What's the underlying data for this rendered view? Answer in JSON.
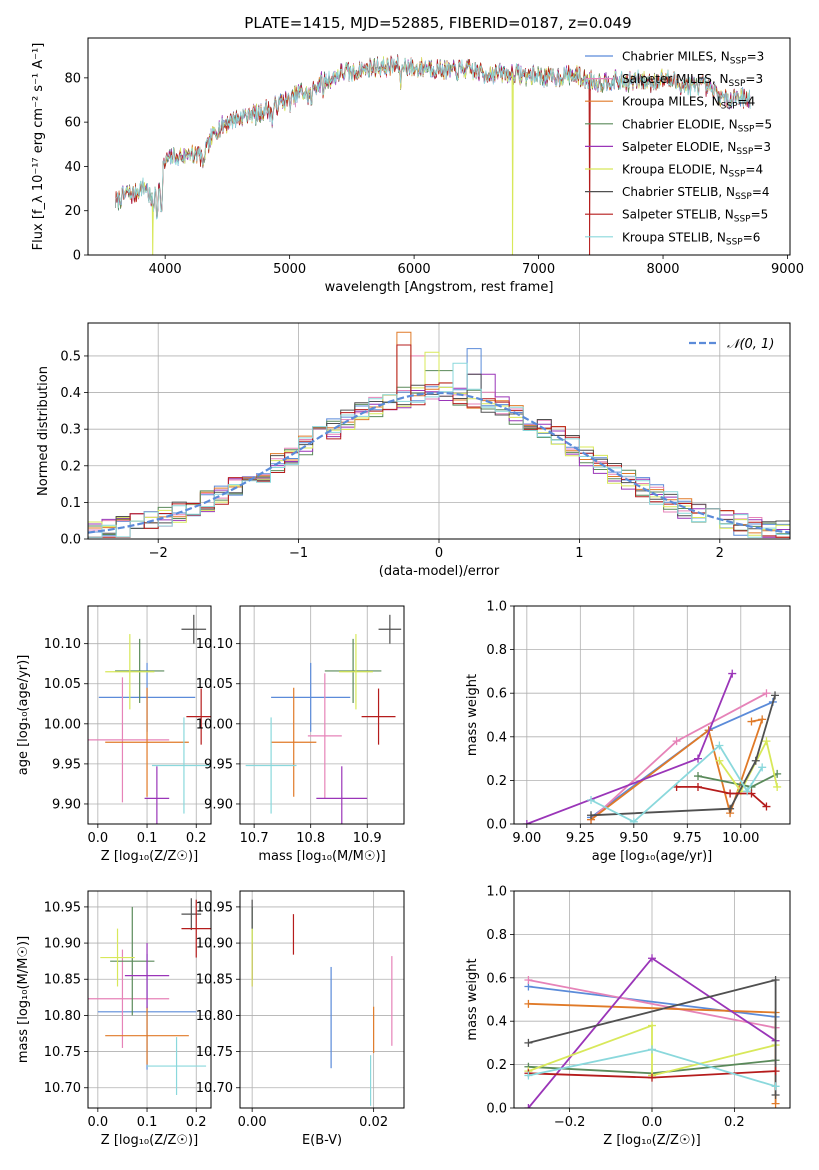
{
  "figure": {
    "title": "PLATE=1415, MJD=52885, FIBERID=0187, z=0.049"
  },
  "models": [
    {
      "name": "Chabrier MILES",
      "nssp": "3",
      "color": "#5b8bd9"
    },
    {
      "name": "Salpeter MILES",
      "nssp": "3",
      "color": "#e683b8"
    },
    {
      "name": "Kroupa MILES",
      "nssp": "4",
      "color": "#e07a28"
    },
    {
      "name": "Chabrier ELODIE",
      "nssp": "5",
      "color": "#5a8a5a"
    },
    {
      "name": "Salpeter ELODIE",
      "nssp": "3",
      "color": "#9a35b8"
    },
    {
      "name": "Kroupa ELODIE",
      "nssp": "4",
      "color": "#d8e85a"
    },
    {
      "name": "Chabrier STELIB",
      "nssp": "4",
      "color": "#505050"
    },
    {
      "name": "Salpeter STELIB",
      "nssp": "5",
      "color": "#b51c1c"
    },
    {
      "name": "Kroupa STELIB",
      "nssp": "6",
      "color": "#8ad8dc"
    }
  ],
  "chart_data": [
    {
      "id": "spectrum",
      "type": "line",
      "xlabel": "wavelength [Angstrom, rest frame]",
      "ylabel": "Flux [f_λ 10⁻¹⁷ erg cm⁻² s⁻¹ A⁻¹]",
      "xlim": [
        3380,
        9020
      ],
      "ylim": [
        0,
        98
      ],
      "xticks": [
        4000,
        5000,
        6000,
        7000,
        8000,
        9000
      ],
      "yticks": [
        0,
        20,
        40,
        60,
        80
      ],
      "legend_position": "right",
      "continuum": {
        "x": [
          3600,
          3650,
          3700,
          3750,
          3800,
          3850,
          3900,
          3950,
          4000,
          4050,
          4100,
          4150,
          4200,
          4250,
          4300,
          4350,
          4400,
          4450,
          4500,
          4550,
          4600,
          4650,
          4700,
          4750,
          4800,
          4850,
          4900,
          4950,
          5000,
          5050,
          5100,
          5150,
          5200,
          5250,
          5300,
          5350,
          5400,
          5450,
          5500,
          5600,
          5700,
          5800,
          5900,
          6000,
          6100,
          6200,
          6300,
          6400,
          6500,
          6600,
          6700,
          6800,
          6900,
          7000,
          7100,
          7200,
          7300,
          7400,
          7500,
          7600,
          7700,
          7800,
          7900,
          8000,
          8100,
          8200,
          8300,
          8400,
          8500,
          8600,
          8700
        ],
        "y": [
          24,
          26,
          28,
          27,
          30,
          31,
          22,
          34,
          42,
          44,
          46,
          44,
          47,
          46,
          44,
          50,
          56,
          58,
          60,
          61,
          62,
          63,
          64,
          63,
          66,
          65,
          68,
          70,
          69,
          72,
          74,
          72,
          76,
          78,
          79,
          80,
          82,
          83,
          82,
          84,
          85,
          85,
          86,
          84,
          85,
          84,
          83,
          84,
          83,
          82,
          82,
          82,
          81,
          81,
          80,
          81,
          81,
          79,
          78,
          79,
          78,
          79,
          78,
          80,
          78,
          76,
          77,
          74,
          70,
          72,
          70
        ]
      },
      "absorption_lines": [
        {
          "x": 3934,
          "y": 14
        },
        {
          "x": 3969,
          "y": 18
        },
        {
          "x": 4102,
          "y": 40
        },
        {
          "x": 4227,
          "y": 40
        },
        {
          "x": 4304,
          "y": 38
        },
        {
          "x": 4861,
          "y": 58
        },
        {
          "x": 5175,
          "y": 66
        },
        {
          "x": 5270,
          "y": 70
        },
        {
          "x": 5892,
          "y": 76
        },
        {
          "x": 6563,
          "y": 78
        }
      ],
      "glitches": [
        {
          "model": 5,
          "x": 3900,
          "y": 0
        },
        {
          "model": 5,
          "x": 6790,
          "y": 0
        },
        {
          "model": 7,
          "x": 7410,
          "y": 0
        }
      ]
    },
    {
      "id": "residuals",
      "type": "histogram",
      "xlabel": "(data-model)/error",
      "ylabel": "Normed distribution",
      "xlim": [
        -2.5,
        2.5
      ],
      "ylim": [
        0,
        0.59
      ],
      "xticks": [
        -2,
        -1,
        0,
        1,
        2
      ],
      "yticks": [
        0.0,
        0.1,
        0.2,
        0.3,
        0.4,
        0.5
      ],
      "bin_width": 0.1,
      "legend_position": "top-right",
      "reference": {
        "label": "𝒩(0, 1)",
        "mean": 0,
        "sigma": 1,
        "color": "#5b8bd9"
      },
      "series_jitter": [
        {
          "model": 0,
          "peak": 0.52,
          "peak_at": 0.25
        },
        {
          "model": 1,
          "peak": 0.5,
          "peak_at": -0.15
        },
        {
          "model": 2,
          "peak": 0.565,
          "peak_at": -0.25
        },
        {
          "model": 3,
          "peak": 0.46,
          "peak_at": 0.0
        },
        {
          "model": 4,
          "peak": 0.45,
          "peak_at": 0.3
        },
        {
          "model": 5,
          "peak": 0.51,
          "peak_at": -0.05
        },
        {
          "model": 6,
          "peak": 0.45,
          "peak_at": 0.25
        },
        {
          "model": 7,
          "peak": 0.53,
          "peak_at": -0.25
        },
        {
          "model": 8,
          "peak": 0.48,
          "peak_at": 0.15
        }
      ]
    },
    {
      "id": "age-vs-Z",
      "type": "errorbar",
      "xlabel": "Z [log₁₀(Z/Z☉)]",
      "ylabel": "age  [log₁₀(age/yr)]",
      "xlim": [
        -0.02,
        0.23
      ],
      "ylim": [
        9.875,
        10.147
      ],
      "xticks": [
        0.0,
        0.1,
        0.2
      ],
      "yticks": [
        9.9,
        9.95,
        10.0,
        10.05,
        10.1
      ],
      "points": [
        {
          "model": 0,
          "x": 0.1,
          "xerr": 0.098,
          "y": 10.033,
          "yerr": 0.043
        },
        {
          "model": 1,
          "x": 0.05,
          "xerr": 0.095,
          "y": 9.98,
          "yerr": 0.078
        },
        {
          "model": 2,
          "x": 0.1,
          "xerr": 0.085,
          "y": 9.977,
          "yerr": 0.068
        },
        {
          "model": 3,
          "x": 0.085,
          "xerr": 0.05,
          "y": 10.066,
          "yerr": 0.04
        },
        {
          "model": 4,
          "x": 0.12,
          "xerr": 0.025,
          "y": 9.907,
          "yerr": 0.04
        },
        {
          "model": 5,
          "x": 0.065,
          "xerr": 0.05,
          "y": 10.065,
          "yerr": 0.047
        },
        {
          "model": 6,
          "x": 0.195,
          "xerr": 0.025,
          "y": 10.118,
          "yerr": 0.018
        },
        {
          "model": 7,
          "x": 0.21,
          "xerr": 0.03,
          "y": 10.009,
          "yerr": 0.035
        },
        {
          "model": 8,
          "x": 0.175,
          "xerr": 0.065,
          "y": 9.948,
          "yerr": 0.06
        }
      ]
    },
    {
      "id": "age-vs-mass",
      "type": "errorbar",
      "xlabel": "mass [log₁₀(M/M☉)]",
      "ylabel": "",
      "xlim": [
        10.675,
        10.965
      ],
      "ylim": [
        9.875,
        10.147
      ],
      "xticks": [
        10.7,
        10.8,
        10.9
      ],
      "yticks": [
        9.9,
        9.95,
        10.0,
        10.05,
        10.1
      ],
      "points": [
        {
          "model": 0,
          "x": 10.8,
          "xerr": 0.07,
          "y": 10.033,
          "yerr": 0.043
        },
        {
          "model": 1,
          "x": 10.825,
          "xerr": 0.03,
          "y": 9.985,
          "yerr": 0.078
        },
        {
          "model": 2,
          "x": 10.77,
          "xerr": 0.04,
          "y": 9.977,
          "yerr": 0.068
        },
        {
          "model": 3,
          "x": 10.875,
          "xerr": 0.05,
          "y": 10.066,
          "yerr": 0.04
        },
        {
          "model": 4,
          "x": 10.855,
          "xerr": 0.045,
          "y": 9.907,
          "yerr": 0.04
        },
        {
          "model": 5,
          "x": 10.88,
          "xerr": 0.03,
          "y": 10.065,
          "yerr": 0.047
        },
        {
          "model": 6,
          "x": 10.94,
          "xerr": 0.02,
          "y": 10.118,
          "yerr": 0.018
        },
        {
          "model": 7,
          "x": 10.92,
          "xerr": 0.03,
          "y": 10.009,
          "yerr": 0.035
        },
        {
          "model": 8,
          "x": 10.73,
          "xerr": 0.045,
          "y": 9.948,
          "yerr": 0.06
        }
      ]
    },
    {
      "id": "mass-vs-Z",
      "type": "errorbar",
      "xlabel": "Z [log₁₀(Z/Z☉)]",
      "ylabel": "mass [log₁₀(M/M☉)]",
      "xlim": [
        -0.02,
        0.23
      ],
      "ylim": [
        10.672,
        10.972
      ],
      "xticks": [
        0.0,
        0.1,
        0.2
      ],
      "yticks": [
        10.7,
        10.75,
        10.8,
        10.85,
        10.9,
        10.95
      ],
      "points": [
        {
          "model": 0,
          "x": 0.1,
          "xerr": 0.1,
          "y": 10.805,
          "yerr": 0.08
        },
        {
          "model": 1,
          "x": 0.05,
          "xerr": 0.095,
          "y": 10.823,
          "yerr": 0.068
        },
        {
          "model": 2,
          "x": 0.1,
          "xerr": 0.085,
          "y": 10.772,
          "yerr": 0.04
        },
        {
          "model": 3,
          "x": 0.07,
          "xerr": 0.045,
          "y": 10.875,
          "yerr": 0.075
        },
        {
          "model": 4,
          "x": 0.1,
          "xerr": 0.045,
          "y": 10.855,
          "yerr": 0.045
        },
        {
          "model": 5,
          "x": 0.04,
          "xerr": 0.035,
          "y": 10.88,
          "yerr": 0.04
        },
        {
          "model": 6,
          "x": 0.19,
          "xerr": 0.02,
          "y": 10.94,
          "yerr": 0.022
        },
        {
          "model": 7,
          "x": 0.2,
          "xerr": 0.03,
          "y": 10.92,
          "yerr": 0.04
        },
        {
          "model": 8,
          "x": 0.16,
          "xerr": 0.06,
          "y": 10.73,
          "yerr": 0.04
        }
      ]
    },
    {
      "id": "mass-vs-ebv",
      "type": "errorbar",
      "xlabel": "E(B-V)",
      "ylabel": "",
      "xlim": [
        -0.002,
        0.025
      ],
      "ylim": [
        10.672,
        10.972
      ],
      "xticks": [
        0.0,
        0.02
      ],
      "yticks": [
        10.7,
        10.75,
        10.8,
        10.85,
        10.9,
        10.95
      ],
      "points": [
        {
          "model": 0,
          "x": 0.013,
          "xerr": 0,
          "y": 10.797,
          "yerr": 0.07
        },
        {
          "model": 1,
          "x": 0.023,
          "xerr": 0,
          "y": 10.82,
          "yerr": 0.062
        },
        {
          "model": 2,
          "x": 0.02,
          "xerr": 0,
          "y": 10.78,
          "yerr": 0.032
        },
        {
          "model": 3,
          "x": 0.0,
          "xerr": 0,
          "y": 10.9,
          "yerr": 0.05
        },
        {
          "model": 4,
          "x": 0.0,
          "xerr": 0,
          "y": 10.87,
          "yerr": 0.03
        },
        {
          "model": 5,
          "x": 0.0,
          "xerr": 0,
          "y": 10.88,
          "yerr": 0.04
        },
        {
          "model": 6,
          "x": 0.0,
          "xerr": 0,
          "y": 10.94,
          "yerr": 0.02
        },
        {
          "model": 7,
          "x": 0.0068,
          "xerr": 0,
          "y": 10.912,
          "yerr": 0.028
        },
        {
          "model": 8,
          "x": 0.0195,
          "xerr": 0,
          "y": 10.71,
          "yerr": 0.035
        }
      ]
    },
    {
      "id": "weight-vs-age",
      "type": "line",
      "xlabel": "age  [log₁₀(age/yr)]",
      "ylabel": "mass weight",
      "xlim": [
        8.94,
        10.23
      ],
      "ylim": [
        0,
        1
      ],
      "xticks": [
        9.0,
        9.25,
        9.5,
        9.75,
        10.0
      ],
      "yticks": [
        0.0,
        0.2,
        0.4,
        0.6,
        0.8,
        1.0
      ],
      "grid": true,
      "series": [
        {
          "model": 0,
          "x": [
            9.3,
            9.85,
            10.15
          ],
          "y": [
            0.03,
            0.43,
            0.56
          ]
        },
        {
          "model": 1,
          "x": [
            9.3,
            9.7,
            10.12
          ],
          "y": [
            0.02,
            0.38,
            0.6
          ]
        },
        {
          "model": 2,
          "x": [
            9.3,
            9.85,
            9.95,
            10.1,
            10.05
          ],
          "y": [
            0.02,
            0.43,
            0.05,
            0.48,
            0.47
          ]
        },
        {
          "model": 3,
          "x": [
            9.8,
            10.05,
            10.17
          ],
          "y": [
            0.22,
            0.17,
            0.23
          ]
        },
        {
          "model": 4,
          "x": [
            9.0,
            9.8,
            9.96
          ],
          "y": [
            0.0,
            0.3,
            0.69
          ]
        },
        {
          "model": 5,
          "x": [
            9.9,
            10.0,
            10.12,
            10.17
          ],
          "y": [
            0.29,
            0.15,
            0.38,
            0.17
          ]
        },
        {
          "model": 6,
          "x": [
            9.3,
            9.95,
            10.07,
            10.16
          ],
          "y": [
            0.04,
            0.07,
            0.29,
            0.59
          ]
        },
        {
          "model": 7,
          "x": [
            9.7,
            9.8,
            9.95,
            10.05,
            10.12
          ],
          "y": [
            0.17,
            0.17,
            0.14,
            0.14,
            0.08
          ]
        },
        {
          "model": 8,
          "x": [
            9.3,
            9.5,
            9.9,
            10.03,
            10.1
          ],
          "y": [
            0.11,
            0.01,
            0.36,
            0.15,
            0.26
          ]
        }
      ]
    },
    {
      "id": "weight-vs-Z",
      "type": "line",
      "xlabel": "Z [log₁₀(Z/Z☉)]",
      "ylabel": "mass weight",
      "xlim": [
        -0.335,
        0.335
      ],
      "ylim": [
        0,
        1
      ],
      "xticks": [
        -0.2,
        0.0,
        0.2
      ],
      "yticks": [
        0.0,
        0.2,
        0.4,
        0.6,
        0.8,
        1.0
      ],
      "grid": true,
      "series": [
        {
          "model": 0,
          "x": [
            -0.3,
            0.3
          ],
          "y": [
            0.56,
            0.42
          ]
        },
        {
          "model": 1,
          "x": [
            -0.3,
            0.3
          ],
          "y": [
            0.59,
            0.37
          ]
        },
        {
          "model": 2,
          "x": [
            -0.3,
            0.3,
            0.3
          ],
          "y": [
            0.48,
            0.44,
            0.02
          ]
        },
        {
          "model": 3,
          "x": [
            -0.3,
            0.0,
            0.3
          ],
          "y": [
            0.19,
            0.16,
            0.22
          ]
        },
        {
          "model": 4,
          "x": [
            -0.3,
            0.0,
            0.3
          ],
          "y": [
            0.0,
            0.69,
            0.31
          ]
        },
        {
          "model": 5,
          "x": [
            -0.3,
            0.0,
            0.0,
            0.3
          ],
          "y": [
            0.17,
            0.38,
            0.15,
            0.29
          ]
        },
        {
          "model": 6,
          "x": [
            -0.3,
            0.3,
            0.3
          ],
          "y": [
            0.3,
            0.59,
            0.06
          ]
        },
        {
          "model": 7,
          "x": [
            -0.3,
            0.0,
            0.3
          ],
          "y": [
            0.16,
            0.14,
            0.17
          ]
        },
        {
          "model": 8,
          "x": [
            -0.3,
            0.0,
            0.3
          ],
          "y": [
            0.15,
            0.27,
            0.1
          ]
        }
      ]
    }
  ]
}
